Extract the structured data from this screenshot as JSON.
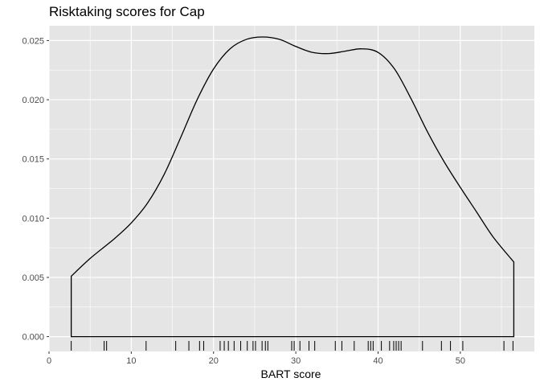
{
  "chart_data": {
    "type": "area",
    "title": "Risktaking scores for Cap",
    "xlabel": "BART score",
    "ylabel": "",
    "xlim": [
      0,
      59
    ],
    "ylim": [
      -0.00125,
      0.02625
    ],
    "x_ticks": [
      0,
      10,
      20,
      30,
      40,
      50
    ],
    "x_tick_labels": [
      "0",
      "10",
      "20",
      "30",
      "40",
      "50"
    ],
    "y_ticks": [
      0,
      0.005,
      0.01,
      0.015,
      0.02,
      0.025
    ],
    "y_tick_labels": [
      "0.000",
      "0.005",
      "0.010",
      "0.015",
      "0.020",
      "0.025"
    ],
    "grid": true,
    "background": "#e5e5e5",
    "grid_color": "#ffffff",
    "line_color": "#000000",
    "density": {
      "x": [
        2.7,
        5,
        8,
        10,
        12,
        14,
        16,
        18,
        20,
        22,
        24,
        26,
        28,
        30,
        32,
        34,
        36,
        38,
        40,
        42,
        44,
        46,
        48,
        50,
        52,
        54,
        56.5
      ],
      "y": [
        0.0051,
        0.0066,
        0.0083,
        0.0096,
        0.0113,
        0.0137,
        0.0168,
        0.02,
        0.0226,
        0.0243,
        0.0251,
        0.0253,
        0.0251,
        0.0245,
        0.024,
        0.0239,
        0.0241,
        0.0243,
        0.024,
        0.0226,
        0.0201,
        0.0173,
        0.0148,
        0.0126,
        0.0105,
        0.0084,
        0.0063
      ]
    },
    "rug": [
      2.7,
      6.7,
      7.0,
      11.8,
      15.4,
      17.0,
      18.3,
      18.8,
      20.8,
      21.3,
      21.8,
      22.5,
      23.3,
      24.1,
      24.8,
      25.1,
      25.9,
      26.3,
      26.6,
      29.5,
      29.8,
      30.5,
      31.6,
      32.3,
      34.8,
      35.6,
      37.1,
      38.8,
      39.1,
      39.4,
      40.4,
      41.4,
      41.9,
      42.2,
      42.5,
      42.8,
      45.4,
      47.7,
      48.8,
      50.3,
      55.3,
      56.4
    ]
  }
}
